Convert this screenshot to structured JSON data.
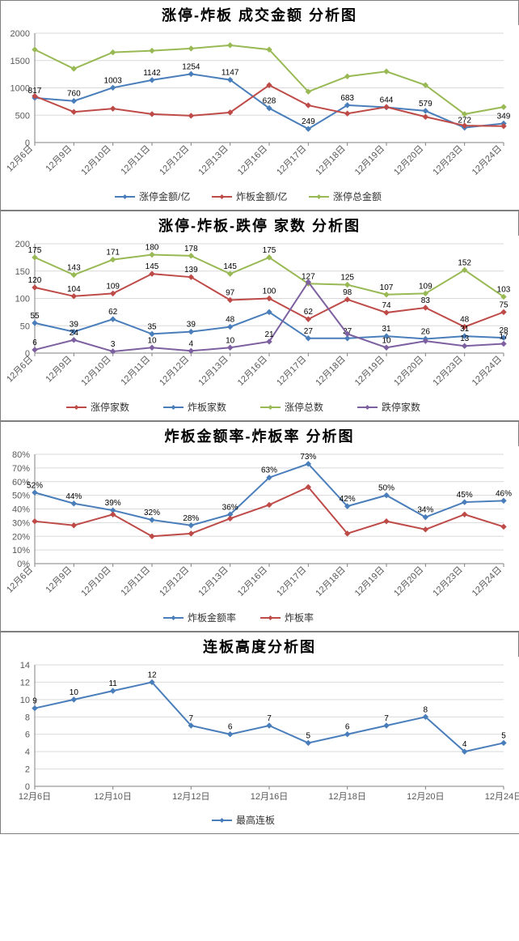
{
  "dates": [
    "12月6日",
    "12月9日",
    "12月10日",
    "12月11日",
    "12月12日",
    "12月13日",
    "12月16日",
    "12月17日",
    "12月18日",
    "12月19日",
    "12月20日",
    "12月23日",
    "12月24日"
  ],
  "colors": {
    "blue": "#4a7ebb",
    "red": "#be4b48",
    "green": "#98b954",
    "purple": "#7d60a0",
    "axis": "#808080",
    "grid": "#d9d9d9",
    "text": "#595959",
    "title": "#000000",
    "bg": "#ffffff"
  },
  "chart1": {
    "title": "涨停-炸板 成交金额 分析图",
    "title_fontsize": 18,
    "ylim": [
      0,
      2000
    ],
    "ytick_step": 500,
    "series": [
      {
        "name": "涨停金额/亿",
        "color": "blue",
        "values": [
          817,
          760,
          1003,
          1142,
          1254,
          1147,
          628,
          249,
          683,
          644,
          579,
          272,
          349
        ],
        "labels": [
          817,
          760,
          1003,
          1142,
          1254,
          1147,
          628,
          249,
          683,
          644,
          579,
          272,
          349
        ]
      },
      {
        "name": "炸板金额/亿",
        "color": "red",
        "values": [
          850,
          560,
          620,
          520,
          490,
          550,
          1050,
          680,
          530,
          650,
          470,
          310,
          300
        ],
        "labels": []
      },
      {
        "name": "涨停总金额",
        "color": "green",
        "values": [
          1700,
          1350,
          1650,
          1680,
          1720,
          1780,
          1700,
          930,
          1210,
          1300,
          1050,
          520,
          650
        ],
        "labels": []
      }
    ],
    "legend": [
      "涨停金额/亿",
      "炸板金额/亿",
      "涨停总金额"
    ]
  },
  "chart2": {
    "title": "涨停-炸板-跌停 家数 分析图",
    "title_fontsize": 18,
    "ylim": [
      0,
      200
    ],
    "ytick_step": 50,
    "series": [
      {
        "name": "涨停家数",
        "color": "red",
        "values": [
          120,
          104,
          109,
          145,
          139,
          97,
          100,
          62,
          98,
          74,
          83,
          48,
          75
        ],
        "labels": [
          120,
          104,
          109,
          145,
          139,
          97,
          100,
          62,
          98,
          74,
          83,
          48,
          75
        ]
      },
      {
        "name": "炸板家数",
        "color": "blue",
        "values": [
          55,
          39,
          62,
          35,
          39,
          48,
          75,
          27,
          27,
          31,
          26,
          31,
          28
        ],
        "labels": [
          55,
          39,
          62,
          35,
          39,
          48,
          "",
          27,
          27,
          31,
          26,
          31,
          28
        ]
      },
      {
        "name": "涨停总数",
        "color": "green",
        "values": [
          175,
          143,
          171,
          180,
          178,
          145,
          175,
          127,
          125,
          107,
          109,
          152,
          103
        ],
        "labels": [
          175,
          143,
          171,
          180,
          178,
          145,
          175,
          127,
          125,
          107,
          109,
          152,
          103
        ]
      },
      {
        "name": "跌停家数",
        "color": "purple",
        "values": [
          6,
          24,
          3,
          10,
          4,
          10,
          21,
          130,
          35,
          10,
          22,
          13,
          17
        ],
        "labels": [
          6,
          24,
          3,
          10,
          4,
          10,
          21,
          "",
          "",
          10,
          "",
          13,
          17
        ]
      }
    ],
    "legend": [
      "涨停家数",
      "炸板家数",
      "涨停总数",
      "跌停家数"
    ]
  },
  "chart3": {
    "title": "炸板金额率-炸板率 分析图",
    "title_fontsize": 18,
    "ylim": [
      0,
      80
    ],
    "ytick_step": 10,
    "ysuffix": "%",
    "series": [
      {
        "name": "炸板金额率",
        "color": "blue",
        "values": [
          52,
          44,
          39,
          32,
          28,
          36,
          63,
          73,
          42,
          50,
          34,
          45,
          46
        ],
        "labels": [
          "52%",
          "44%",
          "39%",
          "32%",
          "28%",
          "36%",
          "63%",
          "73%",
          "42%",
          "50%",
          "34%",
          "45%",
          "46%"
        ]
      },
      {
        "name": "炸板率",
        "color": "red",
        "values": [
          31,
          28,
          36,
          20,
          22,
          33,
          43,
          56,
          22,
          31,
          25,
          36,
          27
        ],
        "labels": []
      }
    ],
    "legend": [
      "炸板金额率",
      "炸板率"
    ]
  },
  "chart4": {
    "title": "连板高度分析图",
    "title_fontsize": 18,
    "ylim": [
      0,
      14
    ],
    "ytick_step": 2,
    "xlabels": [
      "12月6日",
      "12月10日",
      "12月12日",
      "12月16日",
      "12月18日",
      "12月20日",
      "12月24日"
    ],
    "series": [
      {
        "name": "最高连板",
        "color": "blue",
        "values": [
          9,
          10,
          11,
          12,
          7,
          6,
          7,
          5,
          6,
          7,
          8,
          4,
          5
        ],
        "labels": [
          9,
          10,
          11,
          12,
          7,
          6,
          7,
          5,
          6,
          7,
          8,
          4,
          5
        ]
      }
    ],
    "legend": [
      "最高连板"
    ]
  }
}
